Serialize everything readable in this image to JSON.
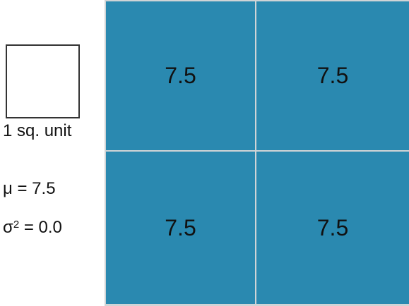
{
  "legend": {
    "unit_label": "1 sq. unit"
  },
  "stats": {
    "mean_label": "μ = 7.5",
    "variance_symbol": "σ",
    "variance_exponent": "2",
    "variance_value": " = 0.0"
  },
  "grid": {
    "cell_color": "#2a89b0",
    "cells": [
      {
        "value": "7.5"
      },
      {
        "value": "7.5"
      },
      {
        "value": "7.5"
      },
      {
        "value": "7.5"
      }
    ]
  }
}
